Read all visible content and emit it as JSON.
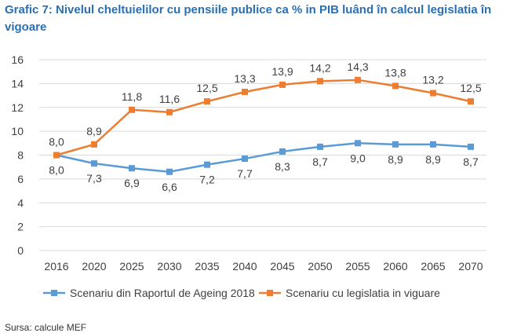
{
  "title": "Grafic 7: Nivelul cheltuielilor cu pensiile publice ca % in PIB luând în calcul legislatia în vigoare",
  "source": "Sursa: calcule MEF",
  "colors": {
    "title": "#2a6fb2",
    "series_blue": "#5b9bd5",
    "series_orange": "#ed7d31",
    "grid": "#d9d9d9"
  },
  "chart_data": {
    "type": "line",
    "title": "Grafic 7: Nivelul cheltuielilor cu pensiile publice ca % in PIB luând în calcul legislatia în vigoare",
    "x": [
      "2016",
      "2020",
      "2025",
      "2030",
      "2035",
      "2040",
      "2045",
      "2050",
      "2055",
      "2060",
      "2065",
      "2070"
    ],
    "ylim": [
      0,
      16
    ],
    "yticks": [
      "0",
      "2",
      "4",
      "6",
      "8",
      "10",
      "12",
      "14",
      "16"
    ],
    "grid": true,
    "legend": "bottom",
    "series": [
      {
        "name": "Scenariu din Raportul de Ageing 2018",
        "color": "#5b9bd5",
        "values": [
          8.0,
          7.3,
          6.9,
          6.6,
          7.2,
          7.7,
          8.3,
          8.7,
          9.0,
          8.9,
          8.9,
          8.7
        ],
        "labels": [
          "8,0",
          "7,3",
          "6,9",
          "6,6",
          "7,2",
          "7,7",
          "8,3",
          "8,7",
          "9,0",
          "8,9",
          "8,9",
          "8,7"
        ]
      },
      {
        "name": "Scenariu cu legislatia in viguare",
        "color": "#ed7d31",
        "values": [
          8.0,
          8.9,
          11.8,
          11.6,
          12.5,
          13.3,
          13.9,
          14.2,
          14.3,
          13.8,
          13.2,
          12.5
        ],
        "labels": [
          "8,0",
          "8,9",
          "11,8",
          "11,6",
          "12,5",
          "13,3",
          "13,9",
          "14,2",
          "14,3",
          "13,8",
          "13,2",
          "12,5"
        ]
      }
    ]
  }
}
